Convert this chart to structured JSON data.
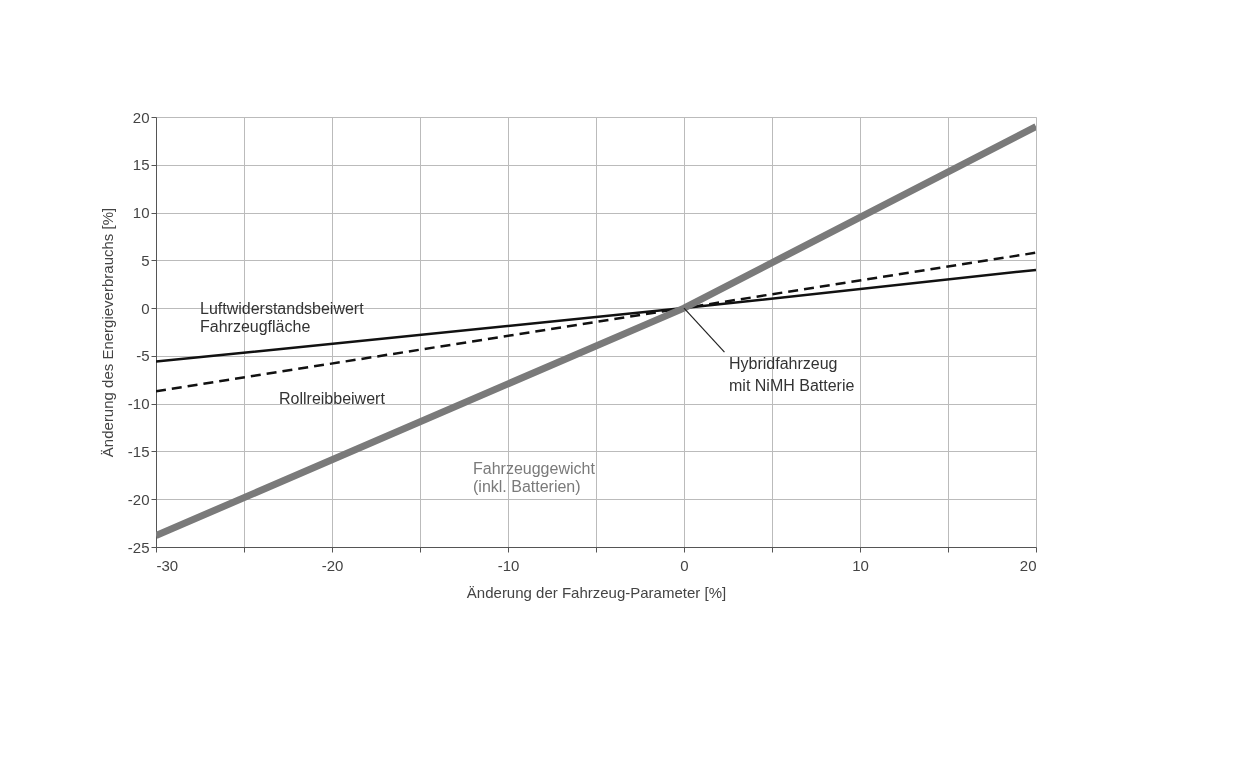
{
  "chart_data": {
    "type": "line",
    "xlabel": "Änderung der Fahrzeug-Parameter [%]",
    "ylabel": "Änderung des Energieverbrauchs [%]",
    "xlim": [
      -30,
      20
    ],
    "ylim": [
      -25,
      20
    ],
    "xticks": [
      -30,
      {
        "value": -25,
        "label": null
      },
      -20,
      {
        "value": -15,
        "label": null
      },
      -10,
      {
        "value": -5,
        "label": null
      },
      0,
      {
        "value": 5,
        "label": null
      },
      10,
      {
        "value": 15,
        "label": null
      },
      20
    ],
    "yticks": [
      -25,
      -20,
      -15,
      -10,
      -5,
      0,
      5,
      10,
      15,
      20
    ],
    "grid": true,
    "series": [
      {
        "name": "Luftwiderstandsbeiwert\nFahrzeugfläche",
        "color": "#111111",
        "line_style": "solid",
        "x": [
          -30,
          0,
          20
        ],
        "values": [
          -5.6,
          0,
          4
        ]
      },
      {
        "name": "Rollreibbeiwert",
        "color": "#111111",
        "line_style": "dashed",
        "x": [
          -30,
          0,
          20
        ],
        "values": [
          -8.7,
          0,
          5.8
        ]
      },
      {
        "name": "Fahrzeuggewicht\n(inkl. Batterien)",
        "color": "#7a7a7a",
        "line_style": "solid",
        "x": [
          -30,
          0,
          20
        ],
        "values": [
          -23.8,
          0,
          19
        ]
      }
    ],
    "annotations": [
      {
        "text": "Hybridfahrzeug\nmit NiMH Batterie",
        "x": 0,
        "y": 0
      }
    ]
  }
}
